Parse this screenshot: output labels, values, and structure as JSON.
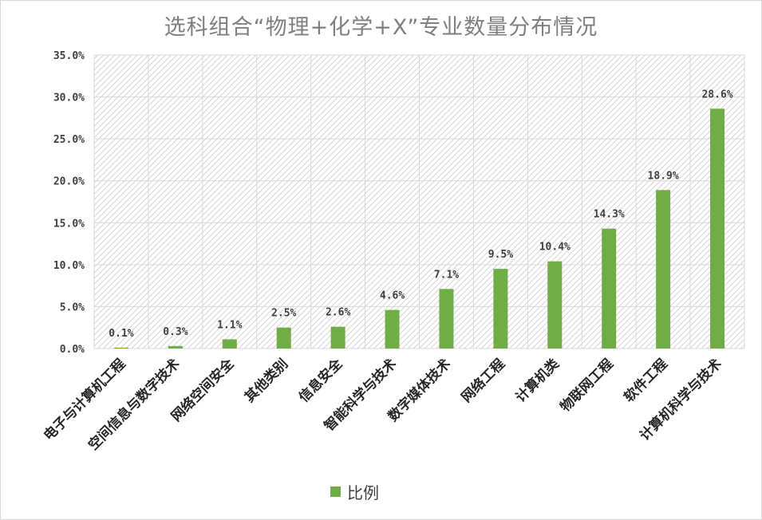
{
  "chart_data": {
    "type": "bar",
    "title": "选科组合“物理+化学+X”专业数量分布情况",
    "categories": [
      "电子与计算机工程",
      "空间信息与数字技术",
      "网络空间安全",
      "其他类别",
      "信息安全",
      "智能科学与技术",
      "数字媒体技术",
      "网络工程",
      "计算机类",
      "物联网工程",
      "软件工程",
      "计算机科学与技术"
    ],
    "series": [
      {
        "name": "比例",
        "values": [
          0.1,
          0.3,
          1.1,
          2.5,
          2.6,
          4.6,
          7.1,
          9.5,
          10.4,
          14.3,
          18.9,
          28.6
        ],
        "labels": [
          "0.1%",
          "0.3%",
          "1.1%",
          "2.5%",
          "2.6%",
          "4.6%",
          "7.1%",
          "9.5%",
          "10.4%",
          "14.3%",
          "18.9%",
          "28.6%"
        ],
        "color": "#70ad47"
      }
    ],
    "yticks": [
      "0.0%",
      "5.0%",
      "10.0%",
      "15.0%",
      "20.0%",
      "25.0%",
      "30.0%",
      "35.0%"
    ],
    "ylim": [
      0,
      35
    ],
    "grid": true,
    "legend_position": "bottom"
  }
}
